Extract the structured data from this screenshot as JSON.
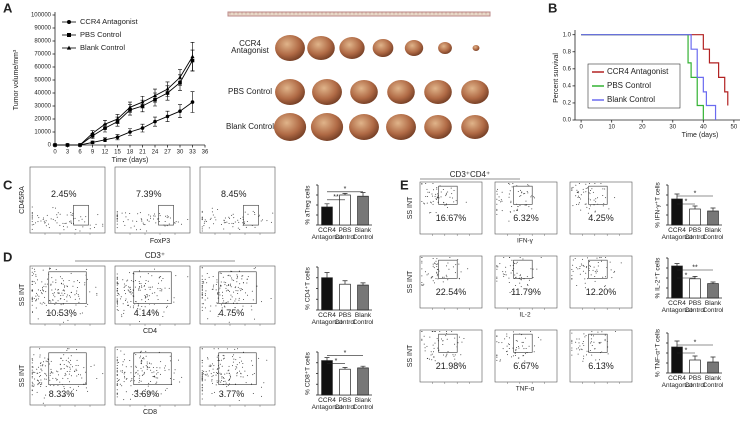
{
  "panel_labels": [
    "A",
    "B",
    "C",
    "D",
    "E"
  ],
  "photo": {
    "row_labels": [
      "CCR4 Antagonist",
      "PBS Control",
      "Blank Control"
    ]
  },
  "flow": {
    "C": {
      "y_label": "CD45RA",
      "x_label": "FoxP3",
      "percents": [
        "2.45%",
        "7.39%",
        "8.45%"
      ]
    },
    "D": {
      "header": "CD3⁺",
      "star": "*",
      "rows": [
        {
          "y_label": "SS INT",
          "x_label": "CD4",
          "percents": [
            "10.53%",
            "4.14%",
            "4.75%"
          ]
        },
        {
          "y_label": "SS INT",
          "x_label": "CD8",
          "percents": [
            "8.33%",
            "3.69%",
            "3.77%"
          ]
        }
      ]
    },
    "E": {
      "header": "CD3⁺CD4⁺",
      "rows": [
        {
          "y_label": "SS INT",
          "x_label": "IFN-γ",
          "percents": [
            "16.67%",
            "6.32%",
            "4.25%"
          ]
        },
        {
          "y_label": "SS INT",
          "x_label": "IL-2",
          "percents": [
            "22.54%",
            "11.79%",
            "12.20%"
          ]
        },
        {
          "y_label": "SS INT",
          "x_label": "TNF-α",
          "percents": [
            "21.98%",
            "6.67%",
            "6.13%"
          ]
        }
      ]
    }
  },
  "chart_data": [
    {
      "type": "line",
      "y_label": "Tumor volume/mm³",
      "x_label": "Time (days)",
      "x": [
        0,
        3,
        6,
        9,
        12,
        15,
        18,
        21,
        24,
        27,
        30,
        33
      ],
      "xlim": [
        0,
        36
      ],
      "xticks": [
        0,
        3,
        6,
        9,
        12,
        15,
        18,
        21,
        24,
        27,
        30,
        33,
        36
      ],
      "ylim": [
        0,
        100000
      ],
      "yticks": [
        0,
        10000,
        20000,
        30000,
        40000,
        50000,
        60000,
        70000,
        80000,
        90000,
        100000
      ],
      "series": [
        {
          "name": "CCR4 Antagonist",
          "color": "#000000",
          "marker": "circle",
          "values": [
            0,
            0,
            0,
            2000,
            4000,
            6000,
            10000,
            13000,
            18000,
            22000,
            26000,
            33000
          ],
          "errors": [
            0,
            0,
            0,
            1000,
            1500,
            2000,
            2500,
            3000,
            3500,
            4000,
            5000,
            8000
          ]
        },
        {
          "name": "PBS Control",
          "color": "#000000",
          "marker": "square",
          "values": [
            0,
            0,
            0,
            7000,
            13000,
            18000,
            27000,
            30000,
            35000,
            40000,
            48000,
            65000
          ],
          "errors": [
            0,
            0,
            0,
            2000,
            3000,
            3500,
            4000,
            4500,
            5000,
            5500,
            6000,
            8000
          ]
        },
        {
          "name": "Blank Control",
          "color": "#000000",
          "marker": "triangle",
          "values": [
            0,
            0,
            0,
            9000,
            16000,
            20000,
            29000,
            33000,
            38000,
            43000,
            52000,
            68000
          ],
          "errors": [
            0,
            0,
            0,
            2000,
            3000,
            3500,
            4000,
            4500,
            5000,
            5500,
            6000,
            11000
          ]
        }
      ]
    },
    {
      "type": "step",
      "y_label": "Percent survival",
      "x_label": "Time (days)",
      "xlim": [
        -2,
        52
      ],
      "xticks": [
        0,
        10,
        20,
        30,
        40,
        50
      ],
      "ylim": [
        0,
        1.02
      ],
      "yticks": [
        {
          "value": 0,
          "label": "0.0"
        },
        0.2,
        0.4,
        0.6,
        0.8,
        {
          "value": 1,
          "label": "1.0"
        }
      ],
      "series": [
        {
          "name": "CCR4 Antagonist",
          "color": "#b22222",
          "x": [
            0,
            40,
            42,
            45,
            47,
            48
          ],
          "values": [
            1,
            0.83,
            0.67,
            0.5,
            0.33,
            0.17
          ]
        },
        {
          "name": "PBS Control",
          "color": "#33b233",
          "x": [
            0,
            35,
            36,
            38,
            40
          ],
          "values": [
            1,
            0.67,
            0.5,
            0.17,
            0
          ]
        },
        {
          "name": "Blank Control",
          "color": "#6b6bf0",
          "x": [
            0,
            36,
            38,
            40,
            41,
            44
          ],
          "values": [
            1,
            0.83,
            0.5,
            0.33,
            0.17,
            0
          ]
        }
      ]
    },
    {
      "type": "bar",
      "y_label": "% aTreg cells",
      "categories": [
        "CCR4 Antagonist",
        "PBS Control",
        "Blank Control"
      ],
      "colors": [
        "#111111",
        "#ffffff",
        "#777777"
      ],
      "ylim": [
        0,
        10
      ],
      "values": [
        4.5,
        7.5,
        7.2
      ],
      "errors": [
        0.8,
        0.4,
        0.9
      ],
      "significance": [
        "*",
        "**"
      ]
    },
    {
      "type": "bar",
      "y_label": "% CD4⁺T cells",
      "categories": [
        "CCR4 Antagonist",
        "PBS Control",
        "Blank Control"
      ],
      "colors": [
        "#111111",
        "#ffffff",
        "#777777"
      ],
      "ylim": [
        0,
        10
      ],
      "values": [
        7.5,
        6,
        5.8
      ],
      "errors": [
        1.2,
        0.8,
        0.5
      ],
      "significance": []
    },
    {
      "type": "bar",
      "y_label": "% CD8⁺T cells",
      "categories": [
        "CCR4 Antagonist",
        "PBS Control",
        "Blank Control"
      ],
      "colors": [
        "#111111",
        "#ffffff",
        "#777777"
      ],
      "ylim": [
        0,
        10
      ],
      "values": [
        8,
        6,
        6.3
      ],
      "errors": [
        0.7,
        0.4,
        0.4
      ],
      "significance": [
        "*",
        "*"
      ]
    },
    {
      "type": "bar",
      "y_label": "% IFN-γ⁺T cells",
      "categories": [
        "CCR4 Antagonist",
        "PBS Control",
        "Blank Control"
      ],
      "colors": [
        "#111111",
        "#ffffff",
        "#777777"
      ],
      "ylim": [
        0,
        20
      ],
      "values": [
        13,
        8,
        7
      ],
      "errors": [
        2.5,
        1.5,
        1.5
      ],
      "significance": [
        "*",
        "*"
      ]
    },
    {
      "type": "bar",
      "y_label": "% IL-2⁺T cells",
      "categories": [
        "CCR4 Antagonist",
        "PBS Control",
        "Blank Control"
      ],
      "colors": [
        "#111111",
        "#ffffff",
        "#777777"
      ],
      "ylim": [
        0,
        25
      ],
      "values": [
        20,
        12,
        9
      ],
      "errors": [
        1.5,
        1.5,
        1
      ],
      "significance": [
        "**",
        "*"
      ]
    },
    {
      "type": "bar",
      "y_label": "% TNF-α⁺T cells",
      "categories": [
        "CCR4 Antagonist",
        "PBS Control",
        "Blank Control"
      ],
      "colors": [
        "#111111",
        "#ffffff",
        "#777777"
      ],
      "ylim": [
        0,
        20
      ],
      "values": [
        13,
        6.5,
        5.5
      ],
      "errors": [
        3,
        2,
        2.5
      ],
      "significance": [
        "*",
        "*"
      ]
    }
  ]
}
